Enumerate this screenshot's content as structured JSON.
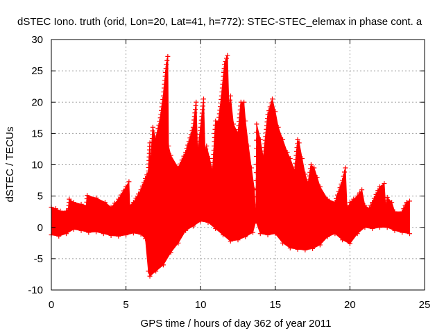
{
  "chart_data": {
    "type": "line",
    "title": "dSTEC Iono. truth (orid, Lon=20, Lat=41, h=772): STEC-STEC_elemax in phase cont. a",
    "xlabel": "GPS time / hours of day 362 of year 2011",
    "ylabel": "dSTEC  / TECUs",
    "xlim": [
      0,
      25
    ],
    "ylim": [
      -10,
      30
    ],
    "x_ticks": [
      "0",
      "5",
      "10",
      "15",
      "20",
      "25"
    ],
    "y_ticks": [
      "-10",
      "-5",
      "0",
      "5",
      "10",
      "15",
      "20",
      "25",
      "30"
    ],
    "grid": true,
    "series_color": "#ff0000",
    "marker": "plus",
    "envelope_upper": {
      "x": [
        0.0,
        0.3,
        0.6,
        1.0,
        1.15,
        1.2,
        1.5,
        2.0,
        2.35,
        2.4,
        3.0,
        3.6,
        4.0,
        4.5,
        5.0,
        5.2,
        5.25,
        5.5,
        6.0,
        6.5,
        6.6,
        6.65,
        6.8,
        7.0,
        7.3,
        7.5,
        7.7,
        7.8,
        7.85,
        8.0,
        8.5,
        9.0,
        9.5,
        9.7,
        9.8,
        10.0,
        10.2,
        10.3,
        10.4,
        10.6,
        10.8,
        11.0,
        11.2,
        11.4,
        11.6,
        11.8,
        11.9,
        12.0,
        12.2,
        12.5,
        12.7,
        12.9,
        13.0,
        13.2,
        13.4,
        13.6,
        13.7,
        13.75,
        14.0,
        14.2,
        14.5,
        14.8,
        15.0,
        15.2,
        15.5,
        15.8,
        16.0,
        16.3,
        16.5,
        16.6,
        16.8,
        17.0,
        17.2,
        17.4,
        17.6,
        17.8,
        18.0,
        18.5,
        19.0,
        19.5,
        19.7,
        19.8,
        19.9,
        20.0,
        20.5,
        20.8,
        21.0,
        21.3,
        21.5,
        22.0,
        22.3,
        22.4,
        22.5,
        22.8,
        23.0,
        23.5,
        23.8,
        24.0
      ],
      "y": [
        3.2,
        3.0,
        2.6,
        2.6,
        3.0,
        4.5,
        4.0,
        3.7,
        3.5,
        5.1,
        4.7,
        4.0,
        3.2,
        4.5,
        6.5,
        7.3,
        3.5,
        4.0,
        6.0,
        9.0,
        13.5,
        10.0,
        16.0,
        14.0,
        17.5,
        21.0,
        26.0,
        27.3,
        13.0,
        11.5,
        9.5,
        12.0,
        16.0,
        20.0,
        12.0,
        16.0,
        20.5,
        12.0,
        13.0,
        11.0,
        9.0,
        17.0,
        17.0,
        21.0,
        26.0,
        27.5,
        19.0,
        21.0,
        16.5,
        15.0,
        20.0,
        20.0,
        17.0,
        13.0,
        9.5,
        6.0,
        1.0,
        16.5,
        14.0,
        11.0,
        18.0,
        20.5,
        18.5,
        16.0,
        14.0,
        12.0,
        11.0,
        9.0,
        14.0,
        13.5,
        11.0,
        8.5,
        7.0,
        10.0,
        9.5,
        8.0,
        6.5,
        4.5,
        4.0,
        7.5,
        9.5,
        3.5,
        3.2,
        4.0,
        5.0,
        6.0,
        3.5,
        3.0,
        4.0,
        6.5,
        7.0,
        3.2,
        4.8,
        4.0,
        2.5,
        2.5,
        4.0,
        4.2
      ]
    },
    "envelope_lower": {
      "x": [
        0.0,
        0.5,
        1.0,
        1.5,
        2.0,
        2.5,
        3.0,
        3.5,
        4.0,
        4.5,
        5.0,
        5.5,
        6.0,
        6.3,
        6.5,
        6.6,
        7.0,
        7.5,
        8.0,
        8.5,
        9.0,
        9.5,
        10.0,
        10.5,
        11.0,
        11.5,
        12.0,
        12.5,
        13.0,
        13.5,
        13.7,
        14.0,
        14.5,
        15.0,
        15.5,
        16.0,
        16.5,
        17.0,
        17.5,
        18.0,
        18.5,
        19.0,
        19.5,
        20.0,
        20.5,
        21.0,
        21.5,
        22.0,
        22.5,
        23.0,
        23.5,
        24.0
      ],
      "y": [
        -1.2,
        -1.4,
        -1.0,
        -0.3,
        -0.5,
        -0.8,
        -0.7,
        -1.0,
        -1.3,
        -1.4,
        -1.2,
        -0.9,
        -1.1,
        -1.8,
        -7.0,
        -7.8,
        -7.0,
        -6.0,
        -4.0,
        -2.5,
        -0.5,
        0.2,
        1.0,
        0.8,
        -0.2,
        -1.2,
        -2.2,
        -2.0,
        -1.5,
        -0.8,
        1.0,
        -1.0,
        -1.2,
        -1.0,
        -2.5,
        -3.3,
        -3.5,
        -3.6,
        -3.4,
        -2.8,
        -1.5,
        -1.0,
        -2.0,
        -2.6,
        -1.0,
        0.0,
        -0.2,
        0.0,
        0.0,
        -0.5,
        -0.8,
        -1.0
      ]
    }
  }
}
